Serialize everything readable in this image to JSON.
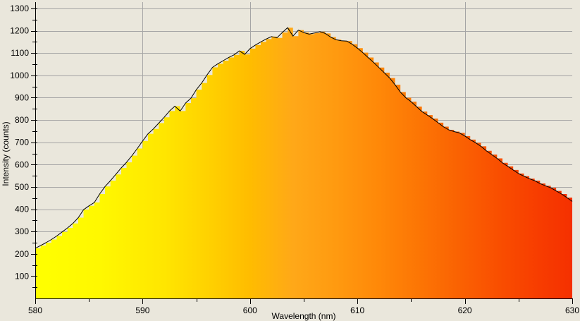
{
  "chart_data": {
    "type": "area",
    "title": "",
    "xlabel": "Wavelength (nm)",
    "ylabel": "Intensity (counts)",
    "xlim": [
      580,
      630
    ],
    "ylim": [
      0,
      1320
    ],
    "grid": true,
    "legend": "none",
    "x_major_ticks": [
      580,
      590,
      600,
      610,
      620,
      630
    ],
    "x_minor_ticks": [
      585,
      595,
      605,
      615,
      625
    ],
    "y_major_ticks": [
      100,
      200,
      300,
      400,
      500,
      600,
      700,
      800,
      900,
      1000,
      1100,
      1200,
      1300
    ],
    "y_minor_ticks": [
      50,
      150,
      250,
      350,
      450,
      550,
      650,
      750,
      850,
      950,
      1050,
      1150,
      1250
    ],
    "background_color": "#eae7dc",
    "gridline_color": "#a5a5a5",
    "axis_color": "#000000",
    "text_color": "#000000",
    "line_color": "#000000",
    "fill_style": "stepped-spectral-gradient",
    "gradient_stops": [
      {
        "wavelength": 580,
        "color": "#ffff00"
      },
      {
        "wavelength": 586,
        "color": "#fff800"
      },
      {
        "wavelength": 592,
        "color": "#ffe600"
      },
      {
        "wavelength": 596,
        "color": "#ffd200"
      },
      {
        "wavelength": 600,
        "color": "#ffbc00"
      },
      {
        "wavelength": 604,
        "color": "#ffa818"
      },
      {
        "wavelength": 608,
        "color": "#ff9a10"
      },
      {
        "wavelength": 612,
        "color": "#ff8808"
      },
      {
        "wavelength": 616,
        "color": "#fc7404"
      },
      {
        "wavelength": 620,
        "color": "#fa5f02"
      },
      {
        "wavelength": 624,
        "color": "#f94a00"
      },
      {
        "wavelength": 627,
        "color": "#f73c00"
      },
      {
        "wavelength": 630,
        "color": "#f53000"
      }
    ],
    "series": [
      {
        "name": "intensity",
        "x": [
          580,
          580.5,
          581,
          581.5,
          582,
          582.5,
          583,
          583.5,
          584,
          584.5,
          585,
          585.5,
          586,
          586.5,
          587,
          587.5,
          588,
          588.5,
          589,
          589.5,
          590,
          590.5,
          591,
          591.5,
          592,
          592.5,
          593,
          593.5,
          594,
          594.5,
          595,
          595.5,
          596,
          596.5,
          597,
          597.5,
          598,
          598.5,
          599,
          599.5,
          600,
          600.5,
          601,
          601.5,
          602,
          602.5,
          603,
          603.5,
          604,
          604.5,
          605,
          605.5,
          606,
          606.5,
          607,
          607.5,
          608,
          608.5,
          609,
          609.5,
          610,
          610.5,
          611,
          611.5,
          612,
          612.5,
          613,
          613.5,
          614,
          614.5,
          615,
          615.5,
          616,
          616.5,
          617,
          617.5,
          618,
          618.5,
          619,
          619.5,
          620,
          620.5,
          621,
          621.5,
          622,
          622.5,
          623,
          623.5,
          624,
          624.5,
          625,
          625.5,
          626,
          626.5,
          627,
          627.5,
          628,
          628.5,
          629,
          629.5,
          630
        ],
        "y": [
          225,
          237,
          250,
          264,
          280,
          298,
          316,
          336,
          362,
          398,
          415,
          430,
          468,
          502,
          528,
          556,
          585,
          610,
          640,
          672,
          706,
          738,
          760,
          786,
          812,
          840,
          862,
          840,
          876,
          898,
          936,
          966,
          1002,
          1036,
          1052,
          1066,
          1080,
          1092,
          1110,
          1094,
          1120,
          1136,
          1150,
          1163,
          1174,
          1168,
          1192,
          1214,
          1176,
          1203,
          1192,
          1185,
          1190,
          1196,
          1188,
          1172,
          1160,
          1155,
          1154,
          1140,
          1122,
          1102,
          1080,
          1058,
          1035,
          1012,
          988,
          958,
          925,
          900,
          882,
          860,
          838,
          822,
          806,
          788,
          770,
          756,
          748,
          742,
          728,
          712,
          698,
          682,
          662,
          645,
          628,
          608,
          592,
          576,
          560,
          548,
          537,
          528,
          515,
          505,
          496,
          482,
          468,
          452,
          435
        ]
      }
    ]
  }
}
